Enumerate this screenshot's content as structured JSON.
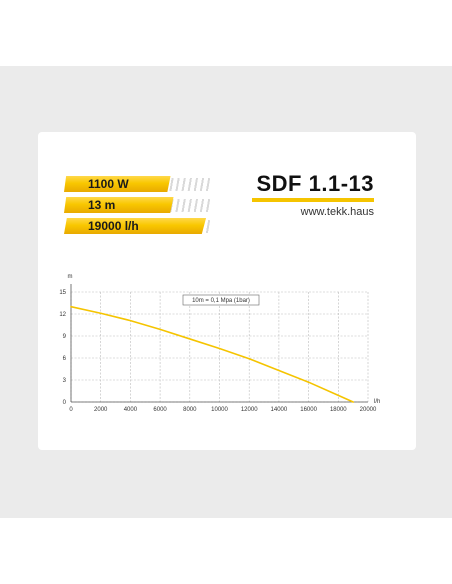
{
  "specs": [
    {
      "label": "1100 W",
      "fraction": 0.72
    },
    {
      "label": "13 m",
      "fraction": 0.74
    },
    {
      "label": "19000 l/h",
      "fraction": 0.96
    }
  ],
  "model": {
    "name": "SDF 1.1-13",
    "website": "www.tekk.haus"
  },
  "colors": {
    "accent": "#f5c400",
    "curve": "#f5c400",
    "grid": "#bbbbbb"
  },
  "chart_data": {
    "type": "line",
    "title": "",
    "xlabel": "l/h",
    "ylabel": "m",
    "xlim": [
      0,
      20000
    ],
    "ylim": [
      0,
      15
    ],
    "x_ticks": [
      0,
      2000,
      4000,
      6000,
      8000,
      10000,
      12000,
      14000,
      16000,
      18000,
      20000
    ],
    "y_ticks": [
      0,
      3,
      6,
      9,
      12,
      15
    ],
    "grid": true,
    "annotation": "10m = 0,1 Mpa (1bar)",
    "series": [
      {
        "x": [
          0,
          2000,
          4000,
          6000,
          8000,
          10000,
          12000,
          14000,
          16000,
          18000,
          19000
        ],
        "y": [
          13,
          12.1,
          11.1,
          9.9,
          8.6,
          7.3,
          5.9,
          4.3,
          2.7,
          0.9,
          0
        ]
      }
    ]
  }
}
